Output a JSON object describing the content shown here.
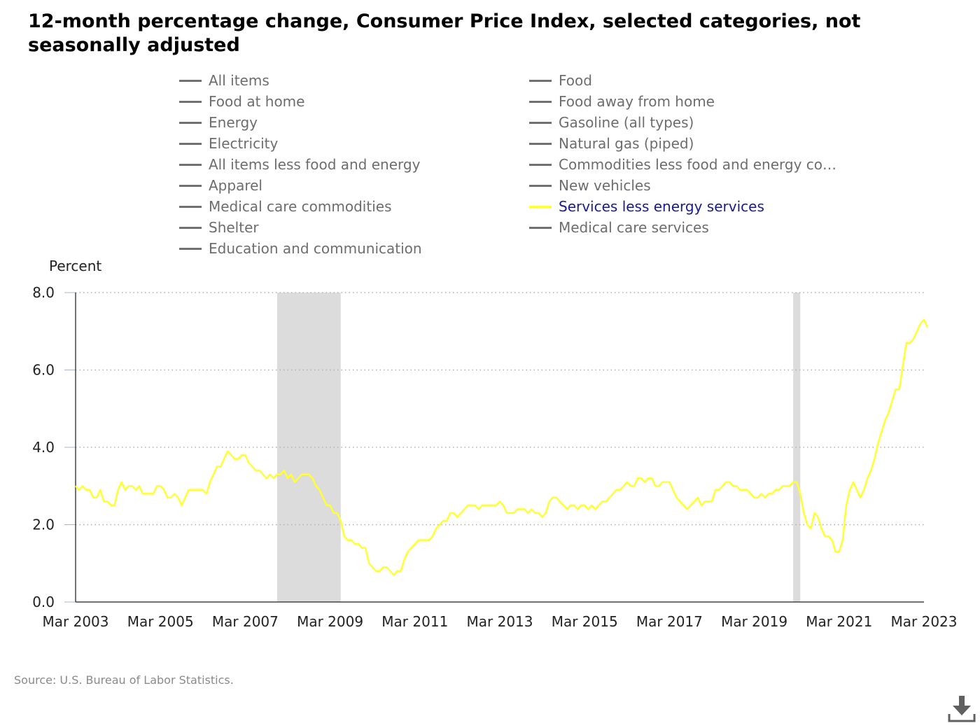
{
  "title": "12-month percentage change, Consumer Price Index, selected categories, not seasonally adjusted",
  "source": "Source: U.S. Bureau of Labor Statistics.",
  "legend": {
    "items": [
      {
        "label": "All items",
        "active": false
      },
      {
        "label": "Food",
        "active": false
      },
      {
        "label": "Food at home",
        "active": false
      },
      {
        "label": "Food away from home",
        "active": false
      },
      {
        "label": "Energy",
        "active": false
      },
      {
        "label": "Gasoline (all types)",
        "active": false
      },
      {
        "label": "Electricity",
        "active": false
      },
      {
        "label": "Natural gas (piped)",
        "active": false
      },
      {
        "label": "All items less food and energy",
        "active": false
      },
      {
        "label": "Commodities less food and energy com…",
        "active": false
      },
      {
        "label": "Apparel",
        "active": false
      },
      {
        "label": "New vehicles",
        "active": false
      },
      {
        "label": "Medical care commodities",
        "active": false
      },
      {
        "label": "Services less energy services",
        "active": true
      },
      {
        "label": "Shelter",
        "active": false
      },
      {
        "label": "Medical care services",
        "active": false
      },
      {
        "label": "Education and communication",
        "active": false
      }
    ]
  },
  "colors": {
    "series": "#ffff33",
    "recession": "#dcdcdc",
    "grid": "#b0b0b0",
    "inactive_legend": "#707070"
  },
  "icons": {
    "download": "download-icon"
  },
  "chart_data": {
    "type": "line",
    "ylabel": "Percent",
    "ylim": [
      0,
      8
    ],
    "yticks": [
      "0.0",
      "2.0",
      "4.0",
      "6.0",
      "8.0"
    ],
    "xlim": [
      "2003-03",
      "2023-03"
    ],
    "xticks": [
      "Mar 2003",
      "Mar 2005",
      "Mar 2007",
      "Mar 2009",
      "Mar 2011",
      "Mar 2013",
      "Mar 2015",
      "Mar 2017",
      "Mar 2019",
      "Mar 2021",
      "Mar 2023"
    ],
    "grid": true,
    "recessions": [
      [
        "2007-12",
        "2009-06"
      ],
      [
        "2020-02",
        "2020-04"
      ]
    ],
    "series": [
      {
        "name": "Services less energy services",
        "color": "#ffff33",
        "points": [
          [
            "2003-03",
            3.0
          ],
          [
            "2003-04",
            2.9
          ],
          [
            "2003-05",
            3.0
          ],
          [
            "2003-06",
            2.9
          ],
          [
            "2003-07",
            2.9
          ],
          [
            "2003-08",
            2.7
          ],
          [
            "2003-09",
            2.7
          ],
          [
            "2003-10",
            2.9
          ],
          [
            "2003-11",
            2.6
          ],
          [
            "2003-12",
            2.6
          ],
          [
            "2004-01",
            2.5
          ],
          [
            "2004-02",
            2.5
          ],
          [
            "2004-03",
            2.9
          ],
          [
            "2004-04",
            3.1
          ],
          [
            "2004-05",
            2.9
          ],
          [
            "2004-06",
            3.0
          ],
          [
            "2004-07",
            3.0
          ],
          [
            "2004-08",
            2.9
          ],
          [
            "2004-09",
            3.0
          ],
          [
            "2004-10",
            2.8
          ],
          [
            "2004-11",
            2.8
          ],
          [
            "2004-12",
            2.8
          ],
          [
            "2005-01",
            2.8
          ],
          [
            "2005-02",
            3.0
          ],
          [
            "2005-03",
            3.0
          ],
          [
            "2005-04",
            2.9
          ],
          [
            "2005-05",
            2.7
          ],
          [
            "2005-06",
            2.7
          ],
          [
            "2005-07",
            2.8
          ],
          [
            "2005-08",
            2.7
          ],
          [
            "2005-09",
            2.5
          ],
          [
            "2005-10",
            2.7
          ],
          [
            "2005-11",
            2.9
          ],
          [
            "2005-12",
            2.9
          ],
          [
            "2006-01",
            2.9
          ],
          [
            "2006-02",
            2.9
          ],
          [
            "2006-03",
            2.9
          ],
          [
            "2006-04",
            2.8
          ],
          [
            "2006-05",
            3.1
          ],
          [
            "2006-06",
            3.3
          ],
          [
            "2006-07",
            3.5
          ],
          [
            "2006-08",
            3.5
          ],
          [
            "2006-09",
            3.7
          ],
          [
            "2006-10",
            3.9
          ],
          [
            "2006-11",
            3.8
          ],
          [
            "2006-12",
            3.7
          ],
          [
            "2007-01",
            3.7
          ],
          [
            "2007-02",
            3.8
          ],
          [
            "2007-03",
            3.8
          ],
          [
            "2007-04",
            3.6
          ],
          [
            "2007-05",
            3.5
          ],
          [
            "2007-06",
            3.4
          ],
          [
            "2007-07",
            3.4
          ],
          [
            "2007-08",
            3.3
          ],
          [
            "2007-09",
            3.2
          ],
          [
            "2007-10",
            3.3
          ],
          [
            "2007-11",
            3.2
          ],
          [
            "2007-12",
            3.3
          ],
          [
            "2008-01",
            3.3
          ],
          [
            "2008-02",
            3.4
          ],
          [
            "2008-03",
            3.2
          ],
          [
            "2008-04",
            3.3
          ],
          [
            "2008-05",
            3.1
          ],
          [
            "2008-06",
            3.2
          ],
          [
            "2008-07",
            3.3
          ],
          [
            "2008-08",
            3.3
          ],
          [
            "2008-09",
            3.3
          ],
          [
            "2008-10",
            3.2
          ],
          [
            "2008-11",
            3.0
          ],
          [
            "2008-12",
            2.9
          ],
          [
            "2009-01",
            2.7
          ],
          [
            "2009-02",
            2.5
          ],
          [
            "2009-03",
            2.5
          ],
          [
            "2009-04",
            2.3
          ],
          [
            "2009-05",
            2.3
          ],
          [
            "2009-06",
            2.1
          ],
          [
            "2009-07",
            1.7
          ],
          [
            "2009-08",
            1.6
          ],
          [
            "2009-09",
            1.6
          ],
          [
            "2009-10",
            1.5
          ],
          [
            "2009-11",
            1.5
          ],
          [
            "2009-12",
            1.4
          ],
          [
            "2010-01",
            1.4
          ],
          [
            "2010-02",
            1.0
          ],
          [
            "2010-03",
            0.9
          ],
          [
            "2010-04",
            0.8
          ],
          [
            "2010-05",
            0.8
          ],
          [
            "2010-06",
            0.9
          ],
          [
            "2010-07",
            0.9
          ],
          [
            "2010-08",
            0.8
          ],
          [
            "2010-09",
            0.7
          ],
          [
            "2010-10",
            0.8
          ],
          [
            "2010-11",
            0.8
          ],
          [
            "2010-12",
            1.1
          ],
          [
            "2011-01",
            1.3
          ],
          [
            "2011-02",
            1.4
          ],
          [
            "2011-03",
            1.5
          ],
          [
            "2011-04",
            1.6
          ],
          [
            "2011-05",
            1.6
          ],
          [
            "2011-06",
            1.6
          ],
          [
            "2011-07",
            1.6
          ],
          [
            "2011-08",
            1.7
          ],
          [
            "2011-09",
            1.9
          ],
          [
            "2011-10",
            2.0
          ],
          [
            "2011-11",
            2.1
          ],
          [
            "2011-12",
            2.1
          ],
          [
            "2012-01",
            2.3
          ],
          [
            "2012-02",
            2.3
          ],
          [
            "2012-03",
            2.2
          ],
          [
            "2012-04",
            2.3
          ],
          [
            "2012-05",
            2.4
          ],
          [
            "2012-06",
            2.5
          ],
          [
            "2012-07",
            2.5
          ],
          [
            "2012-08",
            2.5
          ],
          [
            "2012-09",
            2.4
          ],
          [
            "2012-10",
            2.5
          ],
          [
            "2012-11",
            2.5
          ],
          [
            "2012-12",
            2.5
          ],
          [
            "2013-01",
            2.5
          ],
          [
            "2013-02",
            2.5
          ],
          [
            "2013-03",
            2.6
          ],
          [
            "2013-04",
            2.5
          ],
          [
            "2013-05",
            2.3
          ],
          [
            "2013-06",
            2.3
          ],
          [
            "2013-07",
            2.3
          ],
          [
            "2013-08",
            2.4
          ],
          [
            "2013-09",
            2.4
          ],
          [
            "2013-10",
            2.4
          ],
          [
            "2013-11",
            2.3
          ],
          [
            "2013-12",
            2.4
          ],
          [
            "2014-01",
            2.3
          ],
          [
            "2014-02",
            2.3
          ],
          [
            "2014-03",
            2.2
          ],
          [
            "2014-04",
            2.3
          ],
          [
            "2014-05",
            2.6
          ],
          [
            "2014-06",
            2.7
          ],
          [
            "2014-07",
            2.7
          ],
          [
            "2014-08",
            2.6
          ],
          [
            "2014-09",
            2.5
          ],
          [
            "2014-10",
            2.4
          ],
          [
            "2014-11",
            2.5
          ],
          [
            "2014-12",
            2.5
          ],
          [
            "2015-01",
            2.4
          ],
          [
            "2015-02",
            2.5
          ],
          [
            "2015-03",
            2.5
          ],
          [
            "2015-04",
            2.4
          ],
          [
            "2015-05",
            2.5
          ],
          [
            "2015-06",
            2.4
          ],
          [
            "2015-07",
            2.5
          ],
          [
            "2015-08",
            2.6
          ],
          [
            "2015-09",
            2.6
          ],
          [
            "2015-10",
            2.7
          ],
          [
            "2015-11",
            2.8
          ],
          [
            "2015-12",
            2.9
          ],
          [
            "2016-01",
            2.9
          ],
          [
            "2016-02",
            3.0
          ],
          [
            "2016-03",
            3.1
          ],
          [
            "2016-04",
            3.0
          ],
          [
            "2016-05",
            3.0
          ],
          [
            "2016-06",
            3.2
          ],
          [
            "2016-07",
            3.2
          ],
          [
            "2016-08",
            3.1
          ],
          [
            "2016-09",
            3.2
          ],
          [
            "2016-10",
            3.2
          ],
          [
            "2016-11",
            3.0
          ],
          [
            "2016-12",
            3.0
          ],
          [
            "2017-01",
            3.1
          ],
          [
            "2017-02",
            3.1
          ],
          [
            "2017-03",
            3.1
          ],
          [
            "2017-04",
            2.9
          ],
          [
            "2017-05",
            2.7
          ],
          [
            "2017-06",
            2.6
          ],
          [
            "2017-07",
            2.5
          ],
          [
            "2017-08",
            2.4
          ],
          [
            "2017-09",
            2.5
          ],
          [
            "2017-10",
            2.6
          ],
          [
            "2017-11",
            2.7
          ],
          [
            "2017-12",
            2.5
          ],
          [
            "2018-01",
            2.6
          ],
          [
            "2018-02",
            2.6
          ],
          [
            "2018-03",
            2.6
          ],
          [
            "2018-04",
            2.9
          ],
          [
            "2018-05",
            2.9
          ],
          [
            "2018-06",
            3.0
          ],
          [
            "2018-07",
            3.1
          ],
          [
            "2018-08",
            3.1
          ],
          [
            "2018-09",
            3.0
          ],
          [
            "2018-10",
            3.0
          ],
          [
            "2018-11",
            2.9
          ],
          [
            "2018-12",
            2.9
          ],
          [
            "2019-01",
            2.9
          ],
          [
            "2019-02",
            2.8
          ],
          [
            "2019-03",
            2.7
          ],
          [
            "2019-04",
            2.7
          ],
          [
            "2019-05",
            2.8
          ],
          [
            "2019-06",
            2.7
          ],
          [
            "2019-07",
            2.8
          ],
          [
            "2019-08",
            2.8
          ],
          [
            "2019-09",
            2.9
          ],
          [
            "2019-10",
            2.9
          ],
          [
            "2019-11",
            3.0
          ],
          [
            "2019-12",
            3.0
          ],
          [
            "2020-01",
            3.0
          ],
          [
            "2020-02",
            3.1
          ],
          [
            "2020-03",
            3.1
          ],
          [
            "2020-04",
            2.8
          ],
          [
            "2020-05",
            2.3
          ],
          [
            "2020-06",
            2.0
          ],
          [
            "2020-07",
            1.9
          ],
          [
            "2020-08",
            2.3
          ],
          [
            "2020-09",
            2.2
          ],
          [
            "2020-10",
            1.9
          ],
          [
            "2020-11",
            1.7
          ],
          [
            "2020-12",
            1.7
          ],
          [
            "2021-01",
            1.6
          ],
          [
            "2021-02",
            1.3
          ],
          [
            "2021-03",
            1.3
          ],
          [
            "2021-04",
            1.6
          ],
          [
            "2021-05",
            2.5
          ],
          [
            "2021-06",
            2.9
          ],
          [
            "2021-07",
            3.1
          ],
          [
            "2021-08",
            2.9
          ],
          [
            "2021-09",
            2.7
          ],
          [
            "2021-10",
            2.9
          ],
          [
            "2021-11",
            3.2
          ],
          [
            "2021-12",
            3.4
          ],
          [
            "2022-01",
            3.7
          ],
          [
            "2022-02",
            4.1
          ],
          [
            "2022-03",
            4.4
          ],
          [
            "2022-04",
            4.7
          ],
          [
            "2022-05",
            4.9
          ],
          [
            "2022-06",
            5.2
          ],
          [
            "2022-07",
            5.5
          ],
          [
            "2022-08",
            5.5
          ],
          [
            "2022-09",
            6.1
          ],
          [
            "2022-10",
            6.7
          ],
          [
            "2022-11",
            6.7
          ],
          [
            "2022-12",
            6.8
          ],
          [
            "2023-01",
            7.0
          ],
          [
            "2023-02",
            7.2
          ],
          [
            "2023-03",
            7.3
          ],
          [
            "2023-04",
            7.1
          ]
        ]
      }
    ]
  }
}
